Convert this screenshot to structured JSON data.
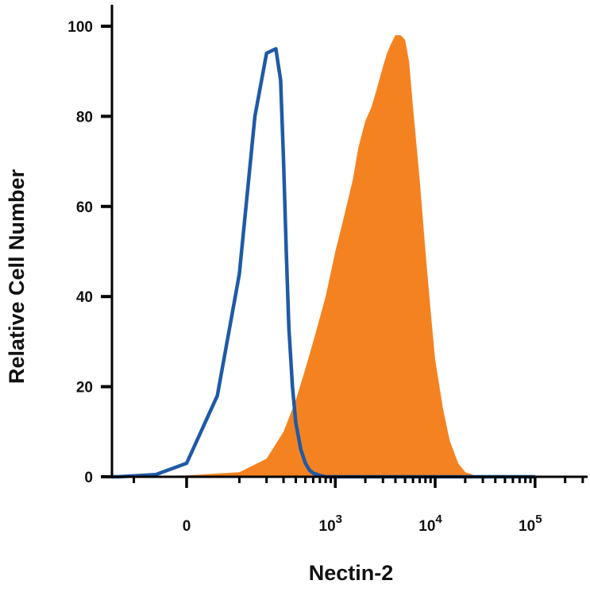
{
  "chart_data": {
    "type": "area",
    "xlabel": "Nectin-2",
    "ylabel": "Relative Cell Number",
    "x_scale": "biexponential",
    "ylim": [
      0,
      100
    ],
    "y_ticks": [
      "0",
      "20",
      "40",
      "60",
      "80",
      "100"
    ],
    "x_ticks": [
      {
        "base": "0",
        "exp": "",
        "value": 0
      },
      {
        "base": "10",
        "exp": "3",
        "value": 1000
      },
      {
        "base": "10",
        "exp": "4",
        "value": 10000
      },
      {
        "base": "10",
        "exp": "5",
        "value": 100000
      }
    ],
    "legend": "none",
    "grid": false,
    "series": [
      {
        "style": "outline",
        "color": "#1f5aa6",
        "x": [
          -300,
          -150,
          -50,
          0,
          50,
          100,
          150,
          200,
          250,
          280,
          300,
          320,
          340,
          370,
          400,
          450,
          500,
          550,
          600,
          700,
          800,
          1000,
          3000,
          100000
        ],
        "y": [
          0,
          0,
          0.5,
          3,
          18,
          45,
          80,
          94,
          95,
          88,
          70,
          50,
          33,
          20,
          12,
          6,
          3,
          1.5,
          0.8,
          0.3,
          0,
          0,
          0,
          0
        ]
      },
      {
        "style": "filled",
        "color": "#f58220",
        "x": [
          -300,
          0,
          100,
          200,
          300,
          400,
          500,
          600,
          800,
          1000,
          1200,
          1500,
          1700,
          2000,
          2300,
          2600,
          3000,
          3300,
          3600,
          4000,
          4500,
          5000,
          5500,
          6000,
          7000,
          8000,
          9000,
          10000,
          12000,
          14000,
          17000,
          20000,
          25000,
          30000,
          100000
        ],
        "y": [
          0,
          0.3,
          1,
          4,
          10,
          17,
          24,
          30,
          40,
          50,
          57,
          66,
          73,
          79,
          82,
          86,
          91,
          94,
          96,
          98,
          98,
          97,
          92,
          82,
          66,
          50,
          37,
          26,
          15,
          8,
          3,
          1,
          0.3,
          0,
          0
        ]
      }
    ]
  }
}
